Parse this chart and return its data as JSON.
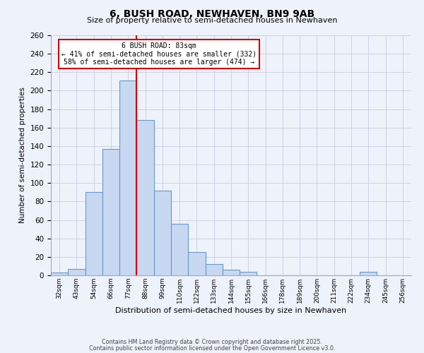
{
  "title": "6, BUSH ROAD, NEWHAVEN, BN9 9AB",
  "subtitle": "Size of property relative to semi-detached houses in Newhaven",
  "xlabel": "Distribution of semi-detached houses by size in Newhaven",
  "ylabel": "Number of semi-detached properties",
  "bin_labels": [
    "32sqm",
    "43sqm",
    "54sqm",
    "66sqm",
    "77sqm",
    "88sqm",
    "99sqm",
    "110sqm",
    "122sqm",
    "133sqm",
    "144sqm",
    "155sqm",
    "166sqm",
    "178sqm",
    "189sqm",
    "200sqm",
    "211sqm",
    "222sqm",
    "234sqm",
    "245sqm",
    "256sqm"
  ],
  "bar_values": [
    3,
    7,
    90,
    137,
    211,
    168,
    92,
    56,
    25,
    12,
    6,
    4,
    0,
    0,
    0,
    0,
    0,
    0,
    4,
    0,
    0
  ],
  "bar_color": "#c8d8f0",
  "bar_edge_color": "#6699cc",
  "vline_x": 5.0,
  "vline_color": "#cc0000",
  "annotation_title": "6 BUSH ROAD: 83sqm",
  "annotation_line1": "← 41% of semi-detached houses are smaller (332)",
  "annotation_line2": "58% of semi-detached houses are larger (474) →",
  "annotation_box_color": "#ffffff",
  "annotation_box_edge": "#cc0000",
  "ylim": [
    0,
    260
  ],
  "yticks": [
    0,
    20,
    40,
    60,
    80,
    100,
    120,
    140,
    160,
    180,
    200,
    220,
    240,
    260
  ],
  "footnote1": "Contains HM Land Registry data © Crown copyright and database right 2025.",
  "footnote2": "Contains public sector information licensed under the Open Government Licence v3.0.",
  "bg_color": "#eef2fa",
  "grid_color": "#c8cce0"
}
